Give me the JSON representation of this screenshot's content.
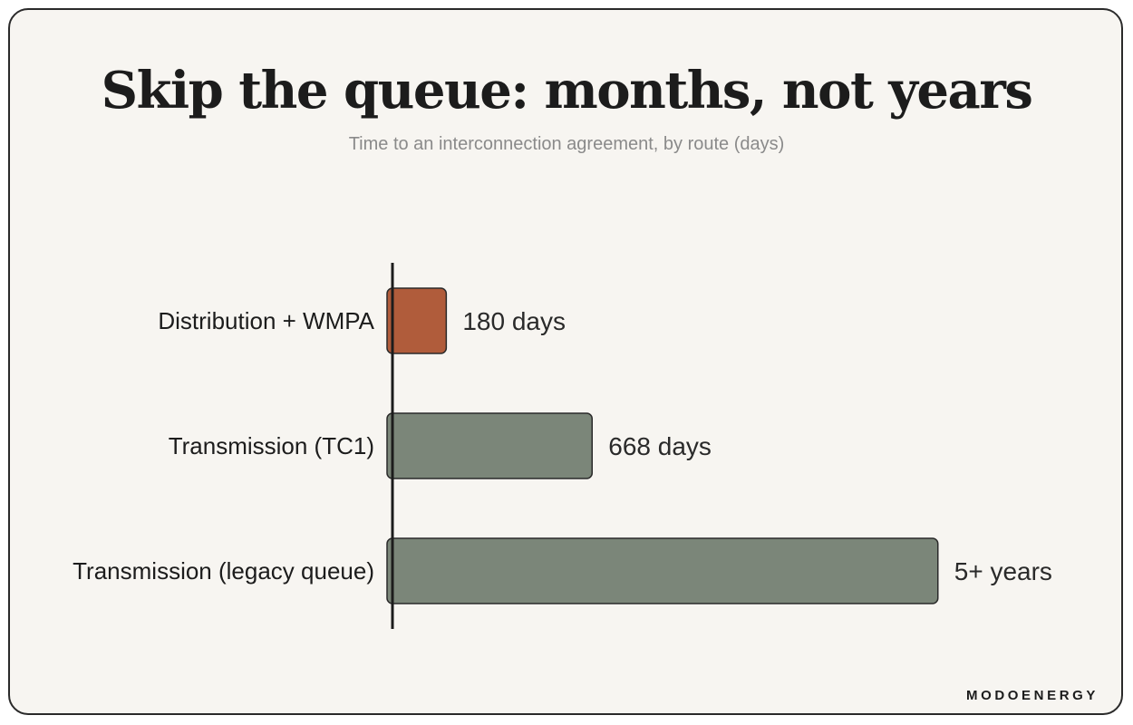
{
  "header": {
    "title": "Skip the queue: months, not years",
    "subtitle": "Time to an interconnection agreement, by route (days)"
  },
  "brand": {
    "logo_text": "MODOENERGY"
  },
  "colors": {
    "highlight": "#b05c3b",
    "neutral": "#7b8679",
    "axis": "#1c1c1c",
    "background": "#f7f5f1"
  },
  "chart_data": {
    "type": "bar",
    "orientation": "horizontal",
    "title": "Skip the queue: months, not years",
    "subtitle": "Time to an interconnection agreement, by route (days)",
    "xlabel": "",
    "ylabel": "",
    "unit": "days",
    "grid": false,
    "legend": "none",
    "xlim": [
      0,
      1850
    ],
    "categories": [
      "Distribution + WMPA",
      "Transmission (TC1)",
      "Transmission (legacy queue)"
    ],
    "values": [
      180,
      668,
      1825
    ],
    "data_labels": [
      "180 days",
      "668 days",
      "5+ years"
    ],
    "bar_colors": [
      "#b05c3b",
      "#7b8679",
      "#7b8679"
    ]
  }
}
